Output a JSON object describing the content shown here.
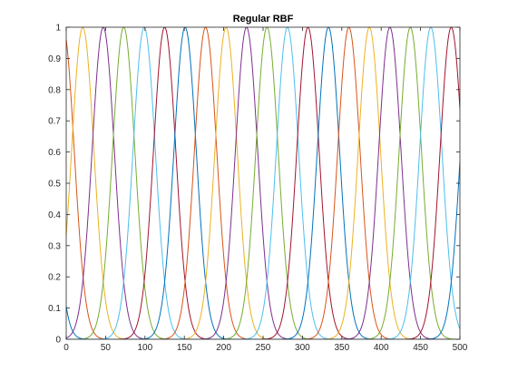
{
  "chart_data": {
    "type": "line",
    "title": "Regular RBF",
    "xlabel": "",
    "ylabel": "",
    "xlim": [
      0,
      500
    ],
    "ylim": [
      0,
      1
    ],
    "x_ticks": [
      0,
      50,
      100,
      150,
      200,
      250,
      300,
      350,
      400,
      450,
      500
    ],
    "y_ticks": [
      0,
      0.1,
      0.2,
      0.3,
      0.4,
      0.5,
      0.6,
      0.7,
      0.8,
      0.9,
      1
    ],
    "grid": false,
    "legend": "none",
    "series_form": "gaussian basis functions y = exp(-((x - center)/width)^2)",
    "width": 20,
    "colors": [
      "#0072BD",
      "#D95319",
      "#EDB120",
      "#7E2F8E",
      "#77AC30",
      "#4DBEEE",
      "#A2142F"
    ],
    "series": [
      {
        "center": -30
      },
      {
        "center": -4
      },
      {
        "center": 21
      },
      {
        "center": 47
      },
      {
        "center": 73
      },
      {
        "center": 99
      },
      {
        "center": 125
      },
      {
        "center": 151
      },
      {
        "center": 177
      },
      {
        "center": 203
      },
      {
        "center": 229
      },
      {
        "center": 255
      },
      {
        "center": 281
      },
      {
        "center": 307
      },
      {
        "center": 333
      },
      {
        "center": 359
      },
      {
        "center": 385
      },
      {
        "center": 411
      },
      {
        "center": 437
      },
      {
        "center": 463
      },
      {
        "center": 489
      },
      {
        "center": 515
      }
    ]
  }
}
